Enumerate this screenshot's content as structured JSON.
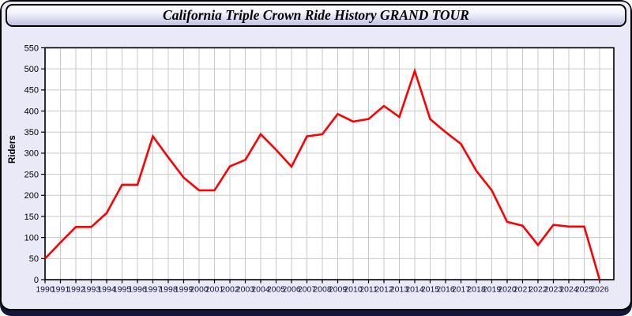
{
  "window": {
    "title": "California Triple Crown Ride History GRAND TOUR"
  },
  "chart_data": {
    "type": "line",
    "title": "California Triple Crown Ride History GRAND TOUR",
    "xlabel": "",
    "ylabel": "Riders",
    "x": [
      1990,
      1991,
      1992,
      1993,
      1994,
      1995,
      1996,
      1997,
      1998,
      1999,
      2000,
      2001,
      2002,
      2003,
      2004,
      2005,
      2006,
      2007,
      2008,
      2009,
      2010,
      2011,
      2012,
      2013,
      2014,
      2015,
      2016,
      2017,
      2018,
      2019,
      2020,
      2021,
      2022,
      2023,
      2024,
      2025,
      2026
    ],
    "series": [
      {
        "name": "Riders",
        "color": "#ff0000",
        "values": [
          50,
          88,
          125,
          125,
          158,
          225,
          225,
          340,
          290,
          242,
          212,
          212,
          269,
          284,
          345,
          308,
          268,
          340,
          345,
          393,
          375,
          381,
          412,
          386,
          495,
          381,
          350,
          322,
          258,
          212,
          137,
          128,
          82,
          130,
          126,
          126,
          0
        ]
      }
    ],
    "ylim": [
      0,
      550
    ],
    "ytick_step": 50,
    "xtick_step": 1,
    "grid": true,
    "legend": "none",
    "plot_bg": "#ffffff",
    "grid_color": "#c9c9c9",
    "axis_color": "#000000",
    "tick_label_color": "#14143c"
  },
  "theme": {
    "page_bg": "#e9e9f8",
    "titlebar_top": "#ffffff",
    "titlebar_bottom": "#c3c3e0",
    "border_color": "#000000",
    "bottom_band": "#15153a"
  }
}
